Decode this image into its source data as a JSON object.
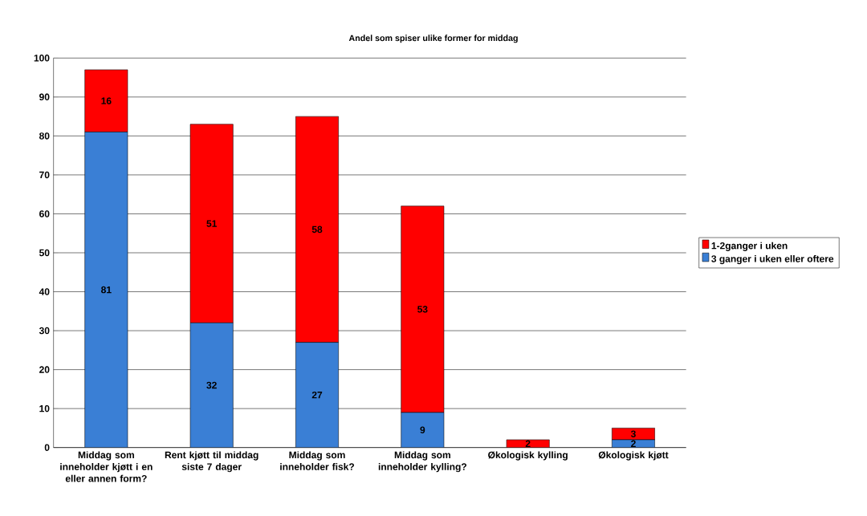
{
  "chart_data": {
    "type": "bar",
    "title": "Andel som spiser ulike former for middag",
    "stacked": true,
    "categories": [
      "Middag som inneholder kjøtt i en eller annen form?",
      "Rent kjøtt til middag siste 7 dager",
      "Middag som inneholder fisk?",
      "Middag som inneholder kylling?",
      "Økologisk kylling",
      "Økologisk kjøtt"
    ],
    "series": [
      {
        "name": "3 ganger i uken eller oftere",
        "color": "#3a7fd5",
        "values": [
          81,
          32,
          27,
          9,
          0,
          2
        ],
        "value_labels": [
          "81",
          "32",
          "27",
          "9",
          null,
          "2"
        ]
      },
      {
        "name": "1-2ganger i uken",
        "color": "#ff0000",
        "values": [
          16,
          51,
          58,
          53,
          2,
          3
        ],
        "value_labels": [
          "16",
          "51",
          "58",
          "53",
          "2",
          "3"
        ]
      }
    ],
    "ylim": [
      0,
      100
    ],
    "yticks": [
      0,
      10,
      20,
      30,
      40,
      50,
      60,
      70,
      80,
      90,
      100
    ],
    "grid": "y",
    "legend": "right"
  }
}
